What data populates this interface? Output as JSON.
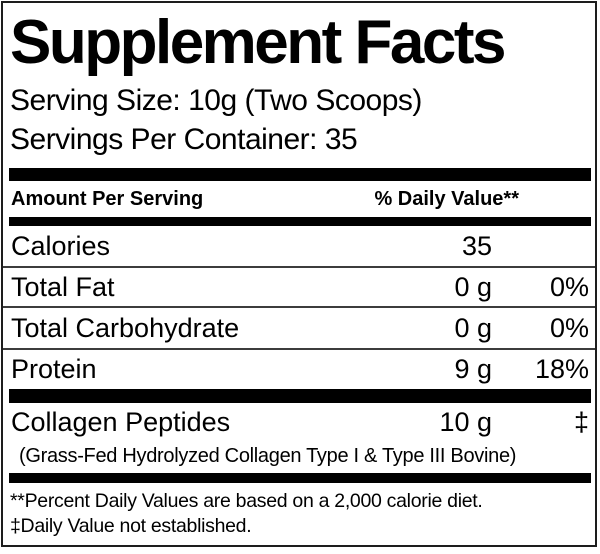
{
  "title": "Supplement Facts",
  "serving": {
    "size": "Serving Size: 10g (Two Scoops)",
    "per_container": "Servings Per Container: 35"
  },
  "table": {
    "header": {
      "amount_label": "Amount Per Serving",
      "daily_value_label": "% Daily Value**"
    },
    "rows": [
      {
        "name": "Calories",
        "amount": "35",
        "dv": ""
      },
      {
        "name": "Total Fat",
        "amount": "0 g",
        "dv": "0%"
      },
      {
        "name": "Total Carbohydrate",
        "amount": "0 g",
        "dv": "0%"
      },
      {
        "name": "Protein",
        "amount": "9 g",
        "dv": "18%"
      }
    ],
    "ingredient_row": {
      "name": "Collagen Peptides",
      "amount": "10 g",
      "dv": "‡",
      "description": "(Grass-Fed Hydrolyzed Collagen Type I & Type III Bovine)"
    }
  },
  "footnotes": [
    "**Percent Daily Values are based on a 2,000 calorie diet.",
    "‡Daily Value not established."
  ],
  "colors": {
    "text": "#000000",
    "background": "#ffffff",
    "thick_bar": "#000000",
    "divider": "#3c3c3c",
    "border": "#1d1d1d"
  }
}
